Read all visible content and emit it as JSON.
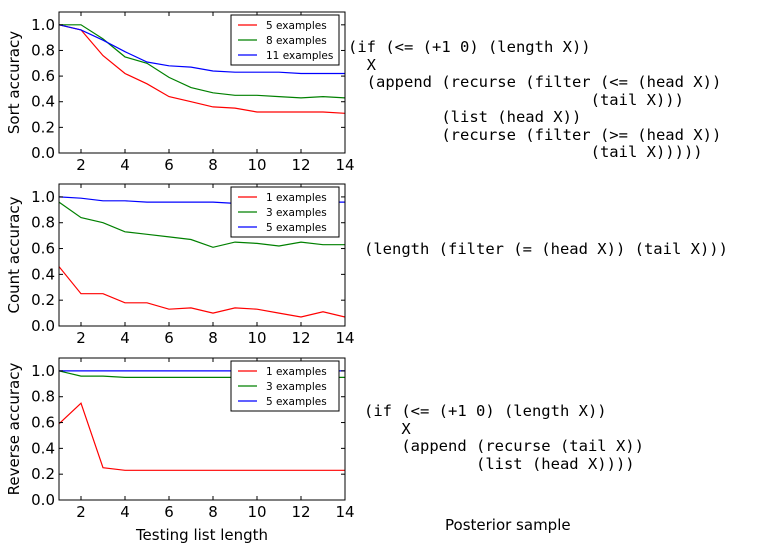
{
  "chart_data": [
    {
      "type": "line",
      "ylabel": "Sort accuracy",
      "xlabel": "",
      "xlim": [
        1,
        14
      ],
      "ylim": [
        0,
        1.1
      ],
      "xticks": [
        2,
        4,
        6,
        8,
        10,
        12,
        14
      ],
      "yticks": [
        0.0,
        0.2,
        0.4,
        0.6,
        0.8,
        1.0
      ],
      "legend_position": "top-right",
      "x": [
        1,
        2,
        3,
        4,
        5,
        6,
        7,
        8,
        9,
        10,
        11,
        12,
        13,
        14
      ],
      "series": [
        {
          "name": "5 examples",
          "color": "#ff0000",
          "values": [
            1.0,
            0.96,
            0.76,
            0.62,
            0.54,
            0.44,
            0.4,
            0.36,
            0.35,
            0.32,
            0.32,
            0.32,
            0.32,
            0.31
          ]
        },
        {
          "name": "8 examples",
          "color": "#008000",
          "values": [
            1.0,
            1.0,
            0.89,
            0.75,
            0.7,
            0.59,
            0.51,
            0.47,
            0.45,
            0.45,
            0.44,
            0.43,
            0.44,
            0.43
          ]
        },
        {
          "name": "11 examples",
          "color": "#0000ff",
          "values": [
            1.0,
            0.96,
            0.88,
            0.79,
            0.71,
            0.68,
            0.67,
            0.64,
            0.63,
            0.63,
            0.63,
            0.62,
            0.62,
            0.62
          ]
        }
      ]
    },
    {
      "type": "line",
      "ylabel": "Count accuracy",
      "xlabel": "",
      "xlim": [
        1,
        14
      ],
      "ylim": [
        0,
        1.1
      ],
      "xticks": [
        2,
        4,
        6,
        8,
        10,
        12,
        14
      ],
      "yticks": [
        0.0,
        0.2,
        0.4,
        0.6,
        0.8,
        1.0
      ],
      "legend_position": "top-right",
      "x": [
        1,
        2,
        3,
        4,
        5,
        6,
        7,
        8,
        9,
        10,
        11,
        12,
        13,
        14
      ],
      "series": [
        {
          "name": "1 examples",
          "color": "#ff0000",
          "values": [
            0.46,
            0.25,
            0.25,
            0.18,
            0.18,
            0.13,
            0.14,
            0.1,
            0.14,
            0.13,
            0.1,
            0.07,
            0.11,
            0.07
          ]
        },
        {
          "name": "3 examples",
          "color": "#008000",
          "values": [
            0.96,
            0.84,
            0.8,
            0.73,
            0.71,
            0.69,
            0.67,
            0.61,
            0.65,
            0.64,
            0.62,
            0.65,
            0.63,
            0.63
          ]
        },
        {
          "name": "5 examples",
          "color": "#0000ff",
          "values": [
            1.0,
            0.99,
            0.97,
            0.97,
            0.96,
            0.96,
            0.96,
            0.96,
            0.95,
            0.95,
            0.95,
            0.95,
            0.96,
            0.96
          ]
        }
      ]
    },
    {
      "type": "line",
      "ylabel": "Reverse accuracy",
      "xlabel": "Testing list length",
      "xlim": [
        1,
        14
      ],
      "ylim": [
        0,
        1.1
      ],
      "xticks": [
        2,
        4,
        6,
        8,
        10,
        12,
        14
      ],
      "yticks": [
        0.0,
        0.2,
        0.4,
        0.6,
        0.8,
        1.0
      ],
      "legend_position": "top-right",
      "x": [
        1,
        2,
        3,
        4,
        5,
        6,
        7,
        8,
        9,
        10,
        11,
        12,
        13,
        14
      ],
      "series": [
        {
          "name": "1 examples",
          "color": "#ff0000",
          "values": [
            0.59,
            0.75,
            0.25,
            0.23,
            0.23,
            0.23,
            0.23,
            0.23,
            0.23,
            0.23,
            0.23,
            0.23,
            0.23,
            0.23
          ]
        },
        {
          "name": "3 examples",
          "color": "#008000",
          "values": [
            1.0,
            0.96,
            0.96,
            0.95,
            0.95,
            0.95,
            0.95,
            0.95,
            0.95,
            0.95,
            0.95,
            0.95,
            0.95,
            0.95
          ]
        },
        {
          "name": "5 examples",
          "color": "#0000ff",
          "values": [
            1.0,
            1.0,
            1.0,
            1.0,
            1.0,
            1.0,
            1.0,
            1.0,
            1.0,
            1.0,
            1.0,
            1.0,
            1.0,
            1.0
          ]
        }
      ]
    }
  ],
  "programs": [
    "(if (<= (+1 0) (length X))\n  X\n  (append (recurse (filter (<= (head X))\n                          (tail X)))\n          (list (head X))\n          (recurse (filter (>= (head X))\n                          (tail X)))))",
    "(length (filter (= (head X)) (tail X)))",
    "(if (<= (+1 0) (length X))\n    X\n    (append (recurse (tail X))\n            (list (head X))))"
  ],
  "caption": "Posterior sample"
}
